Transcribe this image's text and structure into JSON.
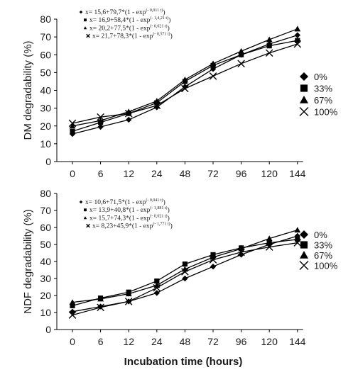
{
  "chart_data": [
    {
      "type": "line",
      "title": "",
      "xlabel": "",
      "ylabel": "DM degradability (%)",
      "ylim": [
        0,
        80
      ],
      "yticks": [
        0,
        10,
        20,
        30,
        40,
        50,
        60,
        70,
        80
      ],
      "categories": [
        "0",
        "6",
        "12",
        "24",
        "48",
        "72",
        "96",
        "120",
        "144"
      ],
      "grid": false,
      "legend": "right",
      "equations": [
        {
          "marker": "diamond",
          "text": "x= 15,6+79,7*(1 - exp",
          "exp": "(- 0,011 t)",
          "close": ")"
        },
        {
          "marker": "square",
          "text": "x= 16,9+58,4*(1 - exp",
          "exp": "(- 1,4,21 t)",
          "close": ")"
        },
        {
          "marker": "triangle",
          "text": "x= 20,2+77,5*(1 - exp",
          "exp": "(- 0,021 t)",
          "close": ")"
        },
        {
          "marker": "x",
          "text": "x= 21,7+78,3*(1 - exp",
          "exp": "(- 0,571 t)",
          "close": ")"
        }
      ],
      "series": [
        {
          "name": "0%",
          "marker": "diamond",
          "values": [
            15.5,
            19.5,
            23.5,
            30.5,
            42,
            52,
            60,
            66,
            71
          ]
        },
        {
          "name": "33%",
          "marker": "square",
          "values": [
            17,
            22,
            27,
            33,
            45,
            54,
            60,
            65,
            68
          ]
        },
        {
          "name": "67%",
          "marker": "triangle",
          "values": [
            20,
            23,
            28,
            34,
            46,
            55,
            62,
            68.5,
            74.5
          ]
        },
        {
          "name": "100%",
          "marker": "x",
          "values": [
            21.5,
            25,
            27,
            31.5,
            41,
            48,
            55,
            61,
            66
          ]
        }
      ]
    },
    {
      "type": "line",
      "title": "",
      "xlabel": "Incubation time (hours)",
      "ylabel": "NDF degradability (%)",
      "ylim": [
        0,
        80
      ],
      "yticks": [
        0,
        10,
        20,
        30,
        40,
        50,
        60,
        70,
        80
      ],
      "categories": [
        "0",
        "6",
        "12",
        "24",
        "48",
        "72",
        "96",
        "120",
        "144"
      ],
      "grid": false,
      "legend": "right",
      "equations": [
        {
          "marker": "diamond",
          "text": "x= 10,6+71,5*(1 - exp",
          "exp": "(- 0,041 t)",
          "close": ")"
        },
        {
          "marker": "square",
          "text": "x= 13,9+40,8*(1 - exp",
          "exp": "(- 1,881 t)",
          "close": ")"
        },
        {
          "marker": "triangle",
          "text": "x= 15,7+74,3*(1 - exp",
          "exp": "(- 0,021 t)",
          "close": ")"
        },
        {
          "marker": "x",
          "text": "x= 8,23+45,9*(1 - exp",
          "exp": "(- 1,771 t)",
          "close": ")"
        }
      ],
      "series": [
        {
          "name": "0%",
          "marker": "diamond",
          "values": [
            10.5,
            13.5,
            16.5,
            21.5,
            30,
            37,
            44,
            50,
            55
          ]
        },
        {
          "name": "33%",
          "marker": "square",
          "values": [
            14,
            18.5,
            22,
            28.5,
            38.5,
            44,
            48,
            51,
            53
          ]
        },
        {
          "name": "67%",
          "marker": "triangle",
          "values": [
            16,
            18,
            21,
            26,
            35.5,
            42.5,
            47.5,
            53.5,
            58.5
          ]
        },
        {
          "name": "100%",
          "marker": "x",
          "values": [
            8.5,
            13,
            16.5,
            24.5,
            34,
            41,
            45.5,
            48.5,
            51
          ]
        }
      ]
    }
  ]
}
